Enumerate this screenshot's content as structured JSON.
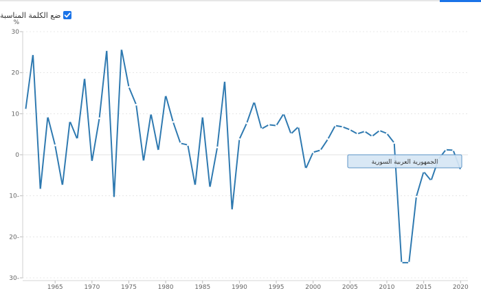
{
  "label_toggle": {
    "text": "ضع الكلمة المناسبة",
    "checked": true
  },
  "colors": {
    "line": "#2e79b0",
    "grid": "#e1e1e1",
    "tooltip_fill": "#d6e6f4",
    "tooltip_border": "#5b93c6",
    "accent": "#1a73e8"
  },
  "chart_data": {
    "type": "line",
    "ylabel": "%",
    "ylim": [
      -30,
      30
    ],
    "yticks": [
      30,
      20,
      10,
      0,
      -10,
      -20,
      -30
    ],
    "ytick_labels": [
      "30",
      "20",
      "10",
      "0",
      "10-",
      "20-",
      "30-"
    ],
    "xlim": [
      1960.6,
      2021
    ],
    "xticks": [
      1965,
      1970,
      1975,
      1980,
      1985,
      1990,
      1995,
      2000,
      2005,
      2010,
      2015,
      2020
    ],
    "xtick_labels": [
      "1965",
      "1970",
      "1975",
      "1980",
      "1985",
      "1990",
      "1995",
      "2000",
      "2005",
      "2010",
      "2015",
      "2020"
    ],
    "grid": true,
    "series": [
      {
        "name": "الجمهورية العربية السورية",
        "x": [
          1961,
          1962,
          1963,
          1964,
          1965,
          1966,
          1967,
          1968,
          1969,
          1970,
          1971,
          1972,
          1973,
          1974,
          1975,
          1976,
          1977,
          1978,
          1979,
          1980,
          1981,
          1982,
          1983,
          1984,
          1985,
          1986,
          1987,
          1988,
          1989,
          1990,
          1991,
          1992,
          1993,
          1994,
          1995,
          1996,
          1997,
          1998,
          1999,
          2000,
          2001,
          2002,
          2003,
          2004,
          2005,
          2006,
          2007,
          2008,
          2009,
          2010,
          2011,
          2012,
          2013,
          2014,
          2015,
          2016,
          2017,
          2018,
          2019,
          2020
        ],
        "y": [
          11,
          24.5,
          -8.5,
          9.3,
          2.3,
          -7.5,
          8.2,
          3.8,
          18.7,
          -1.7,
          8.9,
          25.5,
          -10.5,
          25.8,
          16.5,
          12.2,
          -1.6,
          10,
          1,
          14.5,
          8,
          2.8,
          2.4,
          -7.5,
          9.3,
          -8,
          1.8,
          18,
          -13.5,
          3.8,
          7.7,
          12.9,
          6.3,
          7.3,
          7.1,
          10,
          5.1,
          6.8,
          -3.4,
          0.6,
          1.1,
          3.8,
          7.1,
          6.8,
          6.1,
          5.1,
          5.7,
          4.5,
          5.9,
          5.2,
          2.9,
          -26.3,
          -26.3,
          -10.2,
          -4.1,
          -6.3,
          -1.1,
          1.2,
          1.1,
          -3.7
        ]
      }
    ],
    "tooltip": {
      "text": "الجمهورية العربية السورية"
    }
  }
}
